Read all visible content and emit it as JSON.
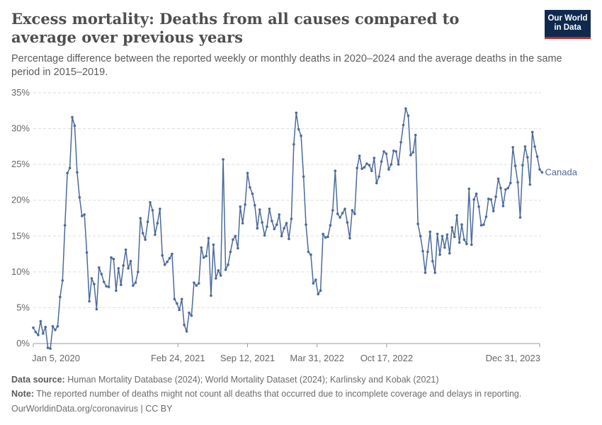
{
  "header": {
    "title": "Excess mortality: Deaths from all causes compared to average over previous years",
    "subtitle": "Percentage difference between the reported weekly or monthly deaths in 2020–2024 and the average deaths in the same period in 2015–2019.",
    "logo_line1": "Our World",
    "logo_line2": "in Data"
  },
  "footer": {
    "source_label": "Data source:",
    "source_text": "Human Mortality Database (2024); World Mortality Dataset (2024); Karlinsky and Kobak (2021)",
    "note_label": "Note:",
    "note_text": "The reported number of deaths might not count all deaths that occurred due to incomplete coverage and delays in reporting.",
    "credit": "OurWorldinData.org/coronavirus | CC BY"
  },
  "colors": {
    "series": "#4c6a9c",
    "grid": "#dddddd",
    "axis_text": "#666666"
  },
  "chart_data": {
    "type": "line",
    "title": "Excess mortality: Deaths from all causes compared to average over previous years",
    "x_tick_labels": [
      "Jan 5, 2020",
      "Feb 24, 2021",
      "Sep 12, 2021",
      "Mar 31, 2022",
      "Oct 17, 2022",
      "Dec 31, 2023"
    ],
    "x_tick_dates": [
      "2020-01-05",
      "2021-02-24",
      "2021-09-12",
      "2022-03-31",
      "2022-10-17",
      "2023-12-31"
    ],
    "y_ticks": [
      0,
      5,
      10,
      15,
      20,
      25,
      30,
      35
    ],
    "y_tick_format": "%",
    "ylim": [
      0,
      35
    ],
    "xlim": [
      "2020-01-05",
      "2023-12-31"
    ],
    "grid": "horizontal dashed",
    "legend": "end-of-line label",
    "series": [
      {
        "name": "Canada",
        "frequency": "weekly",
        "start": "2020-01-05",
        "values": [
          2.2,
          1.6,
          1.2,
          3.1,
          1.4,
          2.3,
          -0.6,
          -0.7,
          2.4,
          1.9,
          2.4,
          6.5,
          8.8,
          16.5,
          23.8,
          24.5,
          31.6,
          30.4,
          23.9,
          20.4,
          17.8,
          18.0,
          12.7,
          5.9,
          9.1,
          8.3,
          4.8,
          10.6,
          9.7,
          8.6,
          8.0,
          7.9,
          12.0,
          11.8,
          7.4,
          10.5,
          8.2,
          10.9,
          13.1,
          10.5,
          11.5,
          8.1,
          8.5,
          10.0,
          17.5,
          15.4,
          14.5,
          17.0,
          19.7,
          18.6,
          15.2,
          16.8,
          18.8,
          12.3,
          11.0,
          11.4,
          11.9,
          12.5,
          6.2,
          5.6,
          4.7,
          6.2,
          2.6,
          1.7,
          4.3,
          3.9,
          8.5,
          8.1,
          8.4,
          13.4,
          12.0,
          12.2,
          14.7,
          6.7,
          13.8,
          9.1,
          10.2,
          9.5,
          25.7,
          10.3,
          11.0,
          12.8,
          14.5,
          15.0,
          13.3,
          19.1,
          16.8,
          19.4,
          23.8,
          21.8,
          20.9,
          19.3,
          16.1,
          18.7,
          16.9,
          15.1,
          16.3,
          18.8,
          17.1,
          16.0,
          16.6,
          18.0,
          15.0,
          16.1,
          16.8,
          14.6,
          17.4,
          27.8,
          32.2,
          29.9,
          29.0,
          23.3,
          16.6,
          12.8,
          12.4,
          8.4,
          8.9,
          6.9,
          7.4,
          15.3,
          14.8,
          14.9,
          16.5,
          18.6,
          24.1,
          18.1,
          17.6,
          18.2,
          18.8,
          16.9,
          14.7,
          18.6,
          18.1,
          24.5,
          26.2,
          24.4,
          24.6,
          25.1,
          24.9,
          24.1,
          25.9,
          22.4,
          23.3,
          25.4,
          26.8,
          26.5,
          24.3,
          25.0,
          26.9,
          26.8,
          25.0,
          28.1,
          30.5,
          32.8,
          31.8,
          26.3,
          26.7,
          29.1,
          16.7,
          15.0,
          12.9,
          9.9,
          12.8,
          15.6,
          11.5,
          9.9,
          15.3,
          12.4,
          15.0,
          13.4,
          15.2,
          12.6,
          16.2,
          14.9,
          17.9,
          14.1,
          16.6,
          14.5,
          13.9,
          21.6,
          13.8,
          20.1,
          20.9,
          19.1,
          16.5,
          16.6,
          17.7,
          20.2,
          20.1,
          18.5,
          20.5,
          23.0,
          21.7,
          19.2,
          21.5,
          21.7,
          22.4,
          27.4,
          24.8,
          22.5,
          17.6,
          24.9,
          27.5,
          26.0,
          22.2,
          29.5,
          27.5,
          26.1,
          24.3,
          23.9
        ]
      }
    ]
  }
}
